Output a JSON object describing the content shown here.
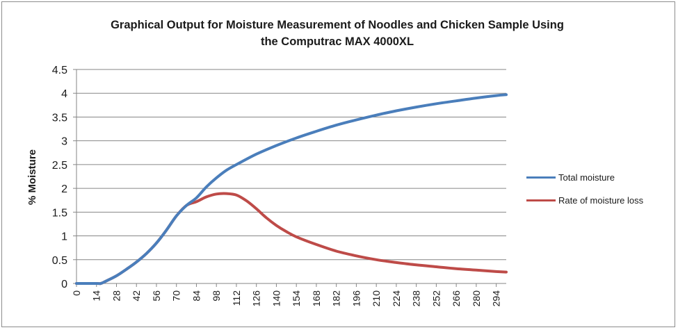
{
  "chart_data": {
    "type": "line",
    "title_line1": "Graphical Output for Moisture Measurement of Noodles and Chicken Sample Using",
    "title_line2": "the Computrac MAX 4000XL",
    "ylabel": "% Moisture",
    "xlabel": "",
    "ylim": [
      0,
      4.5
    ],
    "xlim": [
      0,
      301
    ],
    "y_ticks": [
      "0",
      "0.5",
      "1",
      "1.5",
      "2",
      "2.5",
      "3",
      "3.5",
      "4",
      "4.5"
    ],
    "x_ticks": [
      "0",
      "14",
      "28",
      "42",
      "56",
      "70",
      "84",
      "98",
      "112",
      "126",
      "140",
      "154",
      "168",
      "182",
      "196",
      "210",
      "224",
      "238",
      "252",
      "266",
      "280",
      "294"
    ],
    "grid": "horizontal",
    "legend_position": "right",
    "series": [
      {
        "name": "Total moisture",
        "color": "#4a7ebb",
        "x": [
          0,
          14,
          17,
          20,
          28,
          35,
          42,
          49,
          56,
          63,
          70,
          77,
          84,
          91,
          98,
          105,
          112,
          126,
          140,
          154,
          168,
          182,
          196,
          210,
          224,
          238,
          252,
          266,
          280,
          294,
          301
        ],
        "values": [
          0,
          0,
          0,
          0.04,
          0.16,
          0.3,
          0.45,
          0.63,
          0.85,
          1.12,
          1.42,
          1.64,
          1.8,
          2.03,
          2.22,
          2.38,
          2.5,
          2.72,
          2.9,
          3.06,
          3.2,
          3.33,
          3.44,
          3.54,
          3.63,
          3.71,
          3.78,
          3.84,
          3.9,
          3.95,
          3.97
        ]
      },
      {
        "name": "Rate of moisture loss",
        "color": "#be4b48",
        "x": [
          0,
          14,
          17,
          20,
          28,
          35,
          42,
          49,
          56,
          63,
          70,
          77,
          84,
          91,
          98,
          105,
          112,
          119,
          126,
          133,
          140,
          147,
          154,
          168,
          182,
          196,
          210,
          224,
          238,
          252,
          266,
          280,
          294,
          301
        ],
        "values": [
          0,
          0,
          0,
          0.04,
          0.16,
          0.3,
          0.45,
          0.63,
          0.85,
          1.12,
          1.42,
          1.64,
          1.72,
          1.82,
          1.88,
          1.89,
          1.86,
          1.74,
          1.57,
          1.38,
          1.22,
          1.09,
          0.98,
          0.82,
          0.68,
          0.58,
          0.5,
          0.44,
          0.39,
          0.35,
          0.31,
          0.28,
          0.25,
          0.24
        ]
      }
    ]
  }
}
